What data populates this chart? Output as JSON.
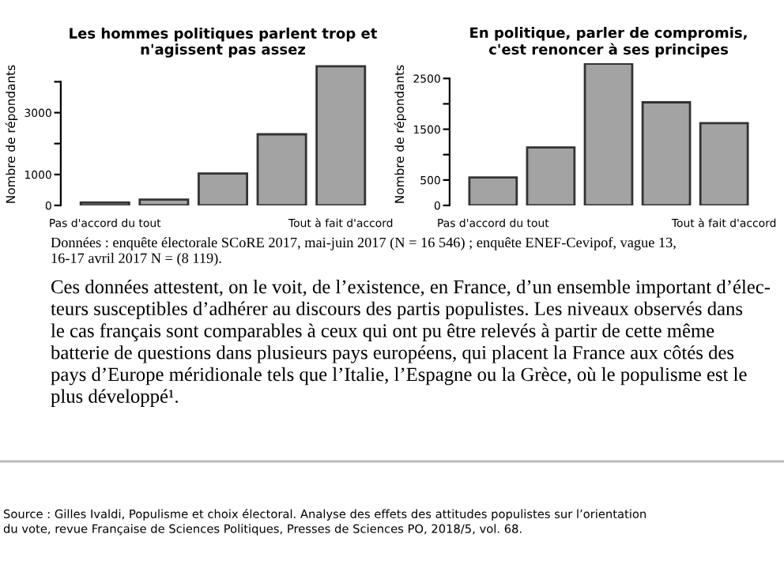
{
  "chart_data": [
    {
      "type": "bar",
      "title": "Les hommes politiques parlent trop et\nn'agissent pas assez",
      "ylabel": "Nombre de répondants",
      "categories": [
        "Pas d'accord du tout",
        null,
        null,
        null,
        "Tout à fait d'accord"
      ],
      "values": [
        90,
        190,
        1030,
        2300,
        4500
      ],
      "color": "#a3a3a3",
      "ylim": [
        0,
        4600
      ],
      "yticks": [
        0,
        1000,
        {
          "value": 2000,
          "label": null
        },
        3000,
        {
          "value": 4000,
          "label": null
        }
      ],
      "grid": false,
      "annotations": [
        "Données : enquête électorale SCoRE 2017, mai-juin 2017 (N = 16 546) ; enquête ENEF-Cevipof, vague 13,\n16-17 avril 2017 N = (8 119).",
        "Ces données attestent, on le voit, de l’existence, en France, d’un ensemble important d’élec-\nteurs susceptibles d’adhérer au discours des partis populistes. Les niveaux observés dans\nle cas français sont comparables à ceux qui ont pu être relevés à partir de cette même\nbatterie de questions dans plusieurs pays européens, qui placent la France aux côtés des\npays d’Europe méridionale tels que l’Italie, l’Espagne ou la Grèce, où le populisme est le\nplus développé¹.",
        "Source : Gilles Ivaldi, Populisme et choix électoral. Analyse des effets des attitudes populistes sur l’orientation\ndu vote, revue Française de Sciences Politiques, Presses de Sciences PO, 2018/5, vol. 68."
      ]
    },
    {
      "type": "bar",
      "title": "En politique, parler de compromis,\nc'est renoncer à ses principes",
      "ylabel": "Nombre de répondants",
      "categories": [
        "Pas d'accord du tout",
        null,
        null,
        null,
        "Tout à fait d'accord"
      ],
      "values": [
        550,
        1140,
        2790,
        2030,
        1620
      ],
      "color": "#a3a3a3",
      "ylim": [
        0,
        2800
      ],
      "yticks": [
        0,
        500,
        {
          "value": 1000,
          "label": null
        },
        1500,
        {
          "value": 2000,
          "label": null
        },
        2500
      ],
      "grid": false
    }
  ]
}
